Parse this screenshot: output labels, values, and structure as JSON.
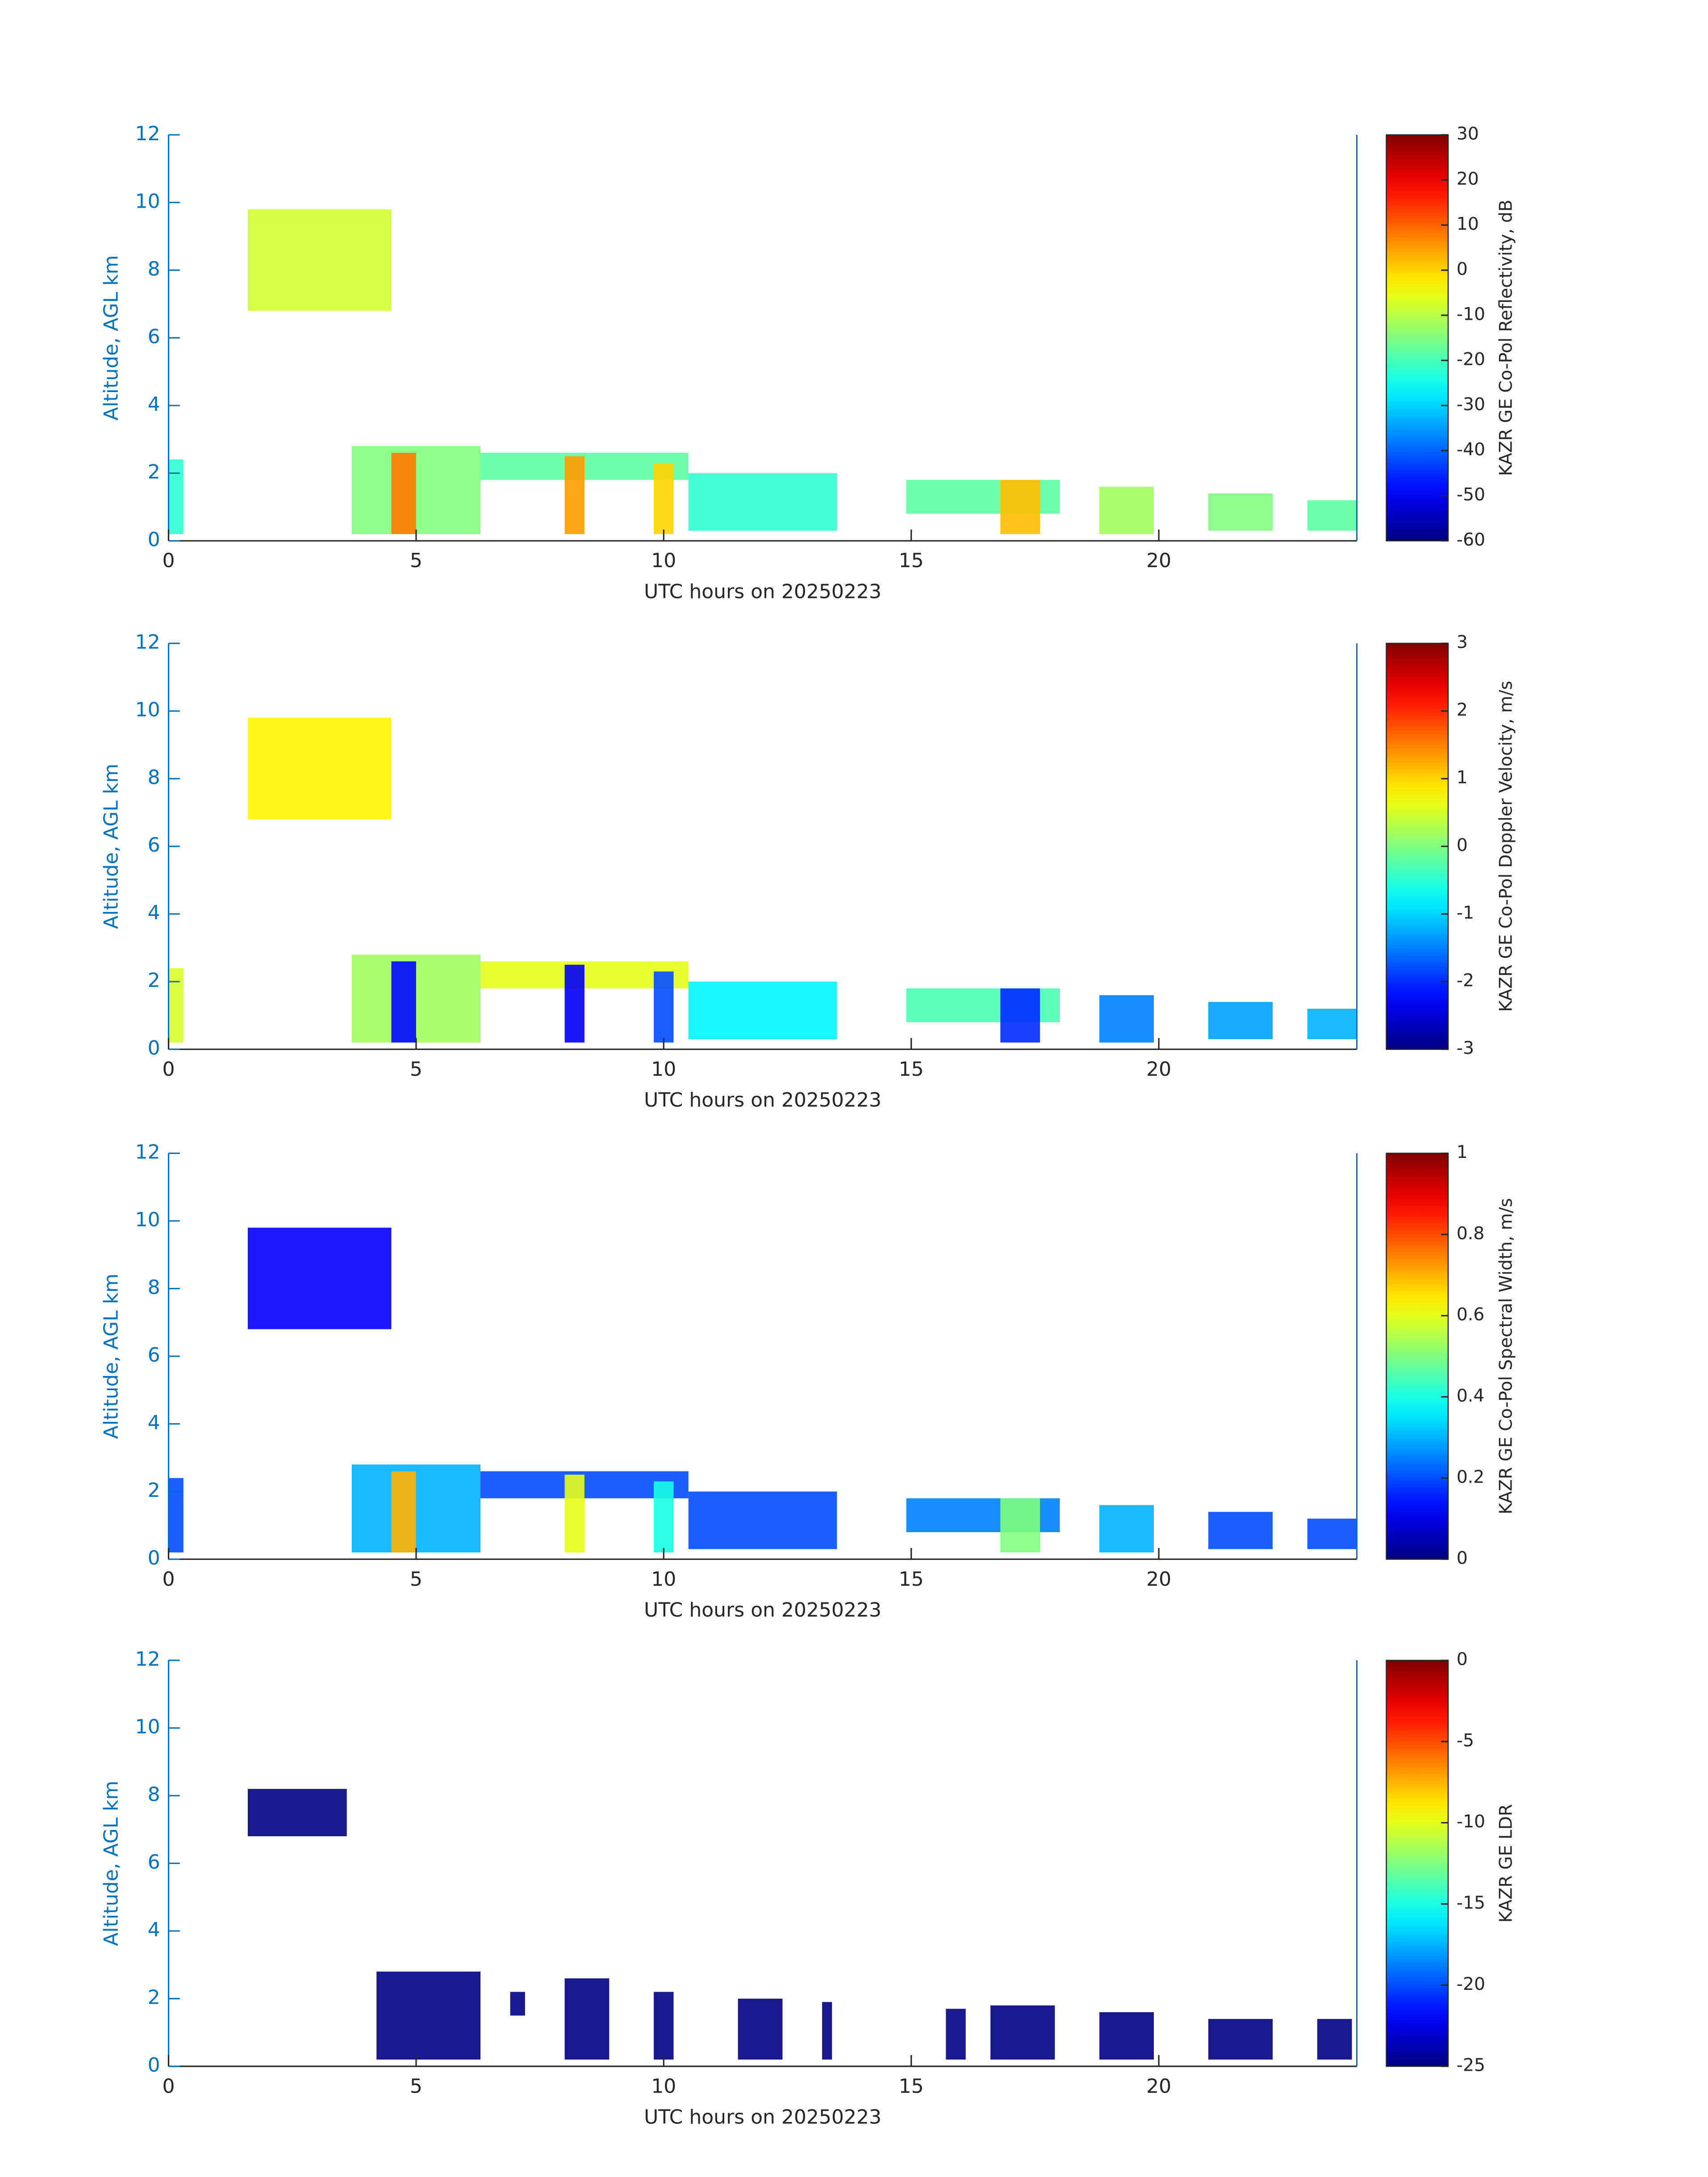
{
  "chart_data": [
    {
      "type": "heatmap",
      "xlabel": "UTC hours on 20250223",
      "ylabel": "Altitude, AGL km",
      "colorbar_label": "KAZR GE Co-Pol Reflectivity, dB",
      "xlim": [
        0,
        24
      ],
      "xticks": [
        0,
        5,
        10,
        15,
        20
      ],
      "ylim": [
        0,
        12
      ],
      "yticks": [
        0,
        2,
        4,
        6,
        8,
        10,
        12
      ],
      "clim": [
        -60,
        30
      ],
      "cticks": [
        -60,
        -50,
        -40,
        -30,
        -20,
        -10,
        0,
        10,
        20,
        30
      ],
      "cells": [
        {
          "x": [
            1.6,
            4.5
          ],
          "y": [
            6.8,
            9.8
          ],
          "value": -8
        },
        {
          "x": [
            0,
            0.3
          ],
          "y": [
            0.2,
            2.4
          ],
          "value": -22
        },
        {
          "x": [
            3.7,
            6.3
          ],
          "y": [
            0.2,
            2.8
          ],
          "value": -15
        },
        {
          "x": [
            4.5,
            5.0
          ],
          "y": [
            0.2,
            2.6
          ],
          "value": 8
        },
        {
          "x": [
            6.3,
            10.5
          ],
          "y": [
            1.8,
            2.6
          ],
          "value": -18
        },
        {
          "x": [
            8.0,
            8.4
          ],
          "y": [
            0.2,
            2.5
          ],
          "value": 5
        },
        {
          "x": [
            9.8,
            10.2
          ],
          "y": [
            0.2,
            2.3
          ],
          "value": 0
        },
        {
          "x": [
            10.5,
            13.5
          ],
          "y": [
            0.3,
            2.0
          ],
          "value": -22
        },
        {
          "x": [
            14.9,
            18.0
          ],
          "y": [
            0.8,
            1.8
          ],
          "value": -18
        },
        {
          "x": [
            16.8,
            17.6
          ],
          "y": [
            0.2,
            1.8
          ],
          "value": 2
        },
        {
          "x": [
            18.8,
            19.9
          ],
          "y": [
            0.2,
            1.6
          ],
          "value": -12
        },
        {
          "x": [
            21.0,
            22.3
          ],
          "y": [
            0.3,
            1.4
          ],
          "value": -15
        },
        {
          "x": [
            23.0,
            24.0
          ],
          "y": [
            0.3,
            1.2
          ],
          "value": -18
        }
      ]
    },
    {
      "type": "heatmap",
      "xlabel": "UTC hours on 20250223",
      "ylabel": "Altitude, AGL km",
      "colorbar_label": "KAZR GE Co-Pol Doppler Velocity, m/s",
      "xlim": [
        0,
        24
      ],
      "xticks": [
        0,
        5,
        10,
        15,
        20
      ],
      "ylim": [
        0,
        12
      ],
      "yticks": [
        0,
        2,
        4,
        6,
        8,
        10,
        12
      ],
      "clim": [
        -3,
        3
      ],
      "cticks": [
        -3,
        -2,
        -1,
        0,
        1,
        2,
        3
      ],
      "cells": [
        {
          "x": [
            1.6,
            4.5
          ],
          "y": [
            6.8,
            9.8
          ],
          "value": 0.8
        },
        {
          "x": [
            0,
            0.3
          ],
          "y": [
            0.2,
            2.4
          ],
          "value": 0.5
        },
        {
          "x": [
            3.7,
            6.3
          ],
          "y": [
            0.2,
            2.8
          ],
          "value": 0.2
        },
        {
          "x": [
            4.5,
            5.0
          ],
          "y": [
            0.2,
            2.6
          ],
          "value": -2.2
        },
        {
          "x": [
            6.3,
            10.5
          ],
          "y": [
            1.8,
            2.6
          ],
          "value": 0.6
        },
        {
          "x": [
            8.0,
            8.4
          ],
          "y": [
            0.2,
            2.5
          ],
          "value": -2.3
        },
        {
          "x": [
            9.8,
            10.2
          ],
          "y": [
            0.2,
            2.3
          ],
          "value": -1.8
        },
        {
          "x": [
            10.5,
            13.5
          ],
          "y": [
            0.3,
            2.0
          ],
          "value": -0.8
        },
        {
          "x": [
            14.9,
            18.0
          ],
          "y": [
            0.8,
            1.8
          ],
          "value": -0.3
        },
        {
          "x": [
            16.8,
            17.6
          ],
          "y": [
            0.2,
            1.8
          ],
          "value": -2.0
        },
        {
          "x": [
            18.8,
            19.9
          ],
          "y": [
            0.2,
            1.6
          ],
          "value": -1.5
        },
        {
          "x": [
            21.0,
            22.3
          ],
          "y": [
            0.3,
            1.4
          ],
          "value": -1.3
        },
        {
          "x": [
            23.0,
            24.0
          ],
          "y": [
            0.3,
            1.2
          ],
          "value": -1.2
        }
      ]
    },
    {
      "type": "heatmap",
      "xlabel": "UTC hours on 20250223",
      "ylabel": "Altitude, AGL km",
      "colorbar_label": "KAZR GE Co-Pol Spectral Width, m/s",
      "xlim": [
        0,
        24
      ],
      "xticks": [
        0,
        5,
        10,
        15,
        20
      ],
      "ylim": [
        0,
        12
      ],
      "yticks": [
        0,
        2,
        4,
        6,
        8,
        10,
        12
      ],
      "clim": [
        0,
        1
      ],
      "cticks": [
        0,
        0.2,
        0.4,
        0.6,
        0.8,
        1
      ],
      "cells": [
        {
          "x": [
            1.6,
            4.5
          ],
          "y": [
            6.8,
            9.8
          ],
          "value": 0.12
        },
        {
          "x": [
            0,
            0.3
          ],
          "y": [
            0.2,
            2.4
          ],
          "value": 0.2
        },
        {
          "x": [
            3.7,
            6.3
          ],
          "y": [
            0.2,
            2.8
          ],
          "value": 0.3
        },
        {
          "x": [
            4.5,
            5.0
          ],
          "y": [
            0.2,
            2.6
          ],
          "value": 0.7
        },
        {
          "x": [
            6.3,
            10.5
          ],
          "y": [
            1.8,
            2.6
          ],
          "value": 0.2
        },
        {
          "x": [
            8.0,
            8.4
          ],
          "y": [
            0.2,
            2.5
          ],
          "value": 0.6
        },
        {
          "x": [
            9.8,
            10.2
          ],
          "y": [
            0.2,
            2.3
          ],
          "value": 0.4
        },
        {
          "x": [
            10.5,
            13.5
          ],
          "y": [
            0.3,
            2.0
          ],
          "value": 0.2
        },
        {
          "x": [
            14.9,
            18.0
          ],
          "y": [
            0.8,
            1.8
          ],
          "value": 0.25
        },
        {
          "x": [
            16.8,
            17.6
          ],
          "y": [
            0.2,
            1.8
          ],
          "value": 0.5
        },
        {
          "x": [
            18.8,
            19.9
          ],
          "y": [
            0.2,
            1.6
          ],
          "value": 0.3
        },
        {
          "x": [
            21.0,
            22.3
          ],
          "y": [
            0.3,
            1.4
          ],
          "value": 0.2
        },
        {
          "x": [
            23.0,
            24.0
          ],
          "y": [
            0.3,
            1.2
          ],
          "value": 0.2
        }
      ]
    },
    {
      "type": "heatmap",
      "xlabel": "UTC hours on 20250223",
      "ylabel": "Altitude, AGL km",
      "colorbar_label": "KAZR GE LDR",
      "xlim": [
        0,
        24
      ],
      "xticks": [
        0,
        5,
        10,
        15,
        20
      ],
      "ylim": [
        0,
        12
      ],
      "yticks": [
        0,
        2,
        4,
        6,
        8,
        10,
        12
      ],
      "clim": [
        -25,
        0
      ],
      "cticks": [
        -25,
        -20,
        -15,
        -10,
        -5,
        0
      ],
      "cells": [
        {
          "x": [
            1.6,
            3.6
          ],
          "y": [
            6.8,
            8.2
          ],
          "value": -25
        },
        {
          "x": [
            4.2,
            6.3
          ],
          "y": [
            0.2,
            2.8
          ],
          "value": -25
        },
        {
          "x": [
            6.9,
            7.2
          ],
          "y": [
            1.5,
            2.2
          ],
          "value": -25
        },
        {
          "x": [
            8.0,
            8.9
          ],
          "y": [
            0.2,
            2.6
          ],
          "value": -25
        },
        {
          "x": [
            9.8,
            10.2
          ],
          "y": [
            0.2,
            2.2
          ],
          "value": -25
        },
        {
          "x": [
            11.5,
            12.4
          ],
          "y": [
            0.2,
            2.0
          ],
          "value": -25
        },
        {
          "x": [
            13.2,
            13.4
          ],
          "y": [
            0.2,
            1.9
          ],
          "value": -25
        },
        {
          "x": [
            15.7,
            16.1
          ],
          "y": [
            0.2,
            1.7
          ],
          "value": -25
        },
        {
          "x": [
            16.6,
            17.9
          ],
          "y": [
            0.2,
            1.8
          ],
          "value": -25
        },
        {
          "x": [
            18.8,
            19.9
          ],
          "y": [
            0.2,
            1.6
          ],
          "value": -25
        },
        {
          "x": [
            21.0,
            22.3
          ],
          "y": [
            0.2,
            1.4
          ],
          "value": -25
        },
        {
          "x": [
            23.2,
            23.9
          ],
          "y": [
            0.2,
            1.4
          ],
          "value": -25
        }
      ]
    }
  ]
}
